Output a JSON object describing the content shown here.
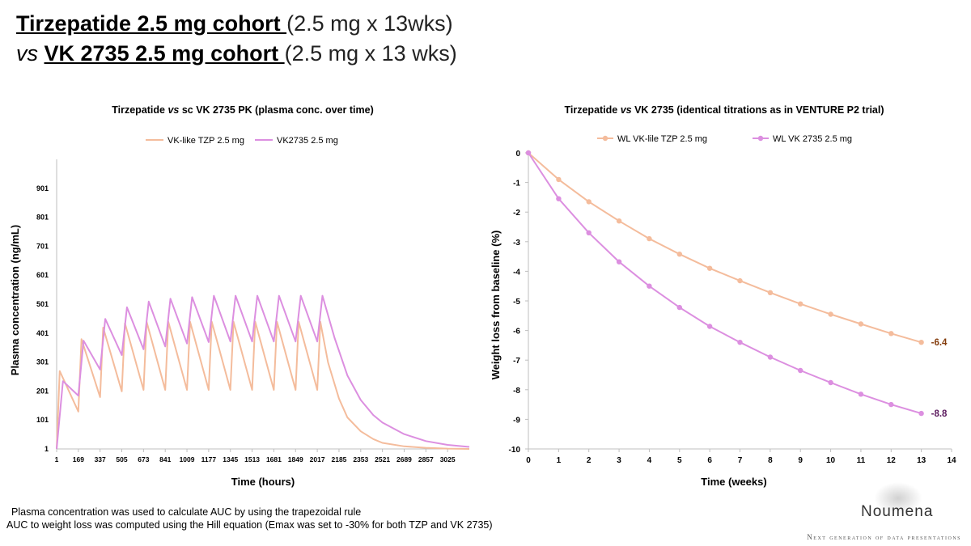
{
  "header": {
    "line1_bold": "Tirzepatide 2.5 mg cohort ",
    "line1_rest": "(2.5 mg x 13wks)",
    "line2_italic": "vs ",
    "line2_bold": "VK 2735 2.5 mg cohort ",
    "line2_rest": "(2.5 mg x 13 wks)"
  },
  "colors": {
    "tzp": "#f4bc9c",
    "vk": "#dc8fe0",
    "tzp_label": "#843c0c",
    "vk_label": "#5b1a5e"
  },
  "chart_data": [
    {
      "type": "line",
      "title_pre": "Tirzepatide ",
      "title_italic": "vs",
      "title_post": " sc VK 2735 PK (plasma conc. over time)",
      "xlabel": "Time (hours)",
      "ylabel": "Plasma concentration (ng/mL)",
      "ylim": [
        1,
        1001
      ],
      "xlim": [
        1,
        3193
      ],
      "y_ticks": [
        1,
        101,
        201,
        301,
        401,
        501,
        601,
        701,
        801,
        901
      ],
      "x_ticks": [
        1,
        169,
        337,
        505,
        673,
        841,
        1009,
        1177,
        1345,
        1513,
        1681,
        1849,
        2017,
        2185,
        2353,
        2521,
        2689,
        2857,
        3025
      ],
      "grid": false,
      "legend": "top-center",
      "series": [
        {
          "name": "VK-like TZP 2.5 mg",
          "x": [
            1,
            25,
            169,
            193,
            337,
            361,
            505,
            529,
            673,
            697,
            841,
            865,
            1009,
            1033,
            1177,
            1201,
            1345,
            1369,
            1513,
            1537,
            1681,
            1705,
            1849,
            1873,
            2017,
            2041,
            2100,
            2185,
            2250,
            2353,
            2450,
            2521,
            2689,
            2857,
            3025,
            3193
          ],
          "y": [
            1,
            270,
            130,
            380,
            180,
            420,
            200,
            435,
            205,
            440,
            205,
            440,
            205,
            440,
            205,
            440,
            205,
            440,
            205,
            440,
            205,
            440,
            205,
            440,
            205,
            440,
            300,
            175,
            110,
            62,
            35,
            22,
            10,
            5,
            2,
            1
          ]
        },
        {
          "name": "VK2735 2.5 mg",
          "x": [
            1,
            50,
            169,
            209,
            337,
            377,
            505,
            545,
            673,
            713,
            841,
            881,
            1009,
            1049,
            1177,
            1217,
            1345,
            1385,
            1513,
            1553,
            1681,
            1721,
            1849,
            1889,
            2017,
            2057,
            2150,
            2250,
            2353,
            2450,
            2521,
            2689,
            2857,
            3025,
            3193
          ],
          "y": [
            1,
            235,
            185,
            375,
            275,
            450,
            325,
            490,
            345,
            510,
            355,
            520,
            365,
            525,
            370,
            530,
            372,
            530,
            372,
            530,
            372,
            530,
            372,
            530,
            372,
            530,
            385,
            255,
            170,
            118,
            92,
            52,
            28,
            15,
            8
          ]
        }
      ]
    },
    {
      "type": "line",
      "title_pre": "Tirzepatide ",
      "title_italic": "vs",
      "title_post": " VK 2735 (identical titrations as in VENTURE P2 trial)",
      "xlabel": "Time (weeks)",
      "ylabel": "Weight loss from baseline (%)",
      "ylim": [
        -10,
        0
      ],
      "xlim": [
        0,
        14
      ],
      "y_ticks": [
        0,
        -1,
        -2,
        -3,
        -4,
        -5,
        -6,
        -7,
        -8,
        -9,
        -10
      ],
      "x_ticks": [
        0,
        1,
        2,
        3,
        4,
        5,
        6,
        7,
        8,
        9,
        10,
        11,
        12,
        13,
        14
      ],
      "grid": false,
      "legend": "top-center",
      "series": [
        {
          "name": "WL VK-lile TZP 2.5 mg",
          "x": [
            0,
            1,
            2,
            3,
            4,
            5,
            6,
            7,
            8,
            9,
            10,
            11,
            12,
            13
          ],
          "y": [
            0,
            -0.9,
            -1.65,
            -2.3,
            -2.9,
            -3.42,
            -3.9,
            -4.32,
            -4.72,
            -5.1,
            -5.45,
            -5.78,
            -6.1,
            -6.4
          ],
          "end_label": "-6.4"
        },
        {
          "name": "WL VK 2735 2.5 mg",
          "x": [
            0,
            1,
            2,
            3,
            4,
            5,
            6,
            7,
            8,
            9,
            10,
            11,
            12,
            13
          ],
          "y": [
            0,
            -1.55,
            -2.7,
            -3.68,
            -4.5,
            -5.22,
            -5.86,
            -6.4,
            -6.9,
            -7.35,
            -7.76,
            -8.15,
            -8.5,
            -8.8
          ],
          "end_label": "-8.8"
        }
      ]
    }
  ],
  "notes": {
    "note1": "Plasma concentration was used to calculate AUC by using the trapezoidal rule",
    "note2": "AUC to weight loss was computed using the Hill equation (Emax was set to -30% for both TZP and VK 2735)"
  },
  "brand": {
    "name": "Noumena",
    "tagline": "Next generation of data presentations"
  }
}
